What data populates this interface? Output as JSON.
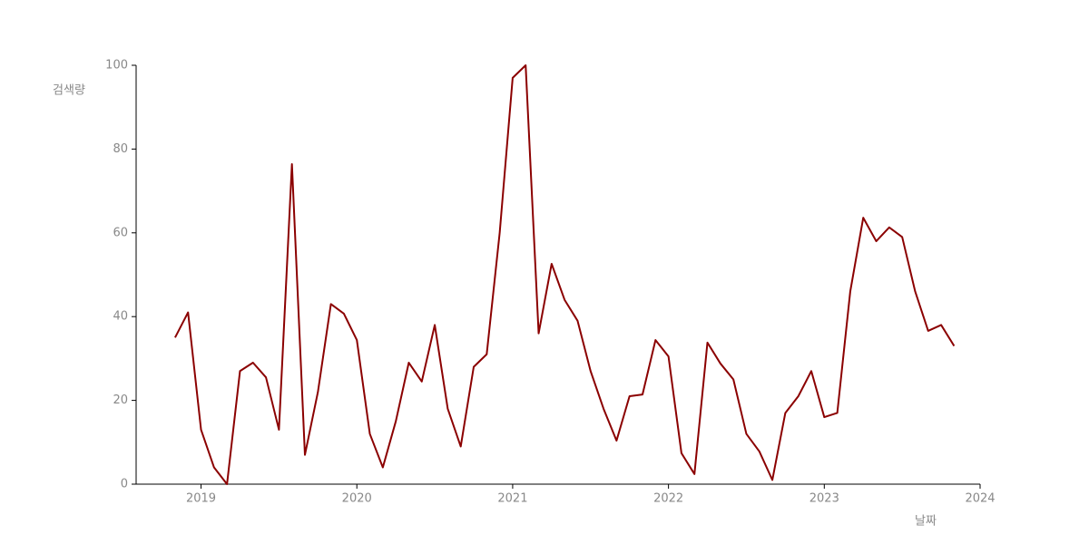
{
  "chart_data": {
    "type": "line",
    "x_label": "날짜",
    "y_label": "검색량",
    "x": [
      "2018-11",
      "2018-12",
      "2019-01",
      "2019-02",
      "2019-03",
      "2019-04",
      "2019-05",
      "2019-06",
      "2019-07",
      "2019-08",
      "2019-09",
      "2019-10",
      "2019-11",
      "2019-12",
      "2020-01",
      "2020-02",
      "2020-03",
      "2020-04",
      "2020-05",
      "2020-06",
      "2020-07",
      "2020-08",
      "2020-09",
      "2020-10",
      "2020-11",
      "2020-12",
      "2021-01",
      "2021-02",
      "2021-03",
      "2021-04",
      "2021-05",
      "2021-06",
      "2021-07",
      "2021-08",
      "2021-09",
      "2021-10",
      "2021-11",
      "2021-12",
      "2022-01",
      "2022-02",
      "2022-03",
      "2022-04",
      "2022-05",
      "2022-06",
      "2022-07",
      "2022-08",
      "2022-09",
      "2022-10",
      "2022-11",
      "2022-12",
      "2023-01",
      "2023-02",
      "2023-03",
      "2023-04",
      "2023-05",
      "2023-06",
      "2023-07",
      "2023-08",
      "2023-09",
      "2023-10",
      "2023-11"
    ],
    "series": [
      {
        "color": "#8b0000",
        "values": [
          35,
          41,
          13,
          4,
          0,
          27,
          29,
          25.5,
          13,
          76.4,
          7,
          22,
          43,
          40.7,
          34.4,
          12,
          4,
          15,
          29,
          24.5,
          38,
          18,
          9,
          28,
          31,
          60,
          97,
          100,
          36,
          52.6,
          44,
          39,
          27,
          18,
          10.4,
          21,
          21.4,
          34.4,
          30.5,
          7.4,
          2.4,
          33.8,
          28.8,
          25,
          12,
          7.8,
          1,
          17,
          21,
          27,
          16,
          17,
          46,
          63.6,
          58,
          61.3,
          59,
          46,
          36.6,
          38,
          33
        ]
      }
    ],
    "xlim": [
      "2018-08",
      "2024-01"
    ],
    "xticks": [
      "2019",
      "2020",
      "2021",
      "2022",
      "2023",
      "2024"
    ],
    "ylim": [
      0,
      100
    ],
    "yticks": [
      0,
      20,
      40,
      60,
      80,
      100
    ],
    "grid": false
  }
}
